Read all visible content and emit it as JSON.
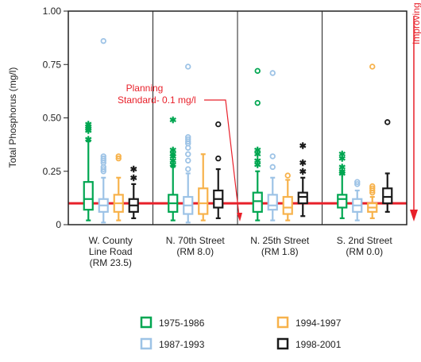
{
  "chart_data": {
    "type": "boxplot",
    "ylabel": "Total Phosphorus (mg/l)",
    "ylim": [
      0,
      1.0
    ],
    "yticks": [
      "0",
      "0.25",
      "0.50",
      "0.75",
      "1.00"
    ],
    "ytick_values": [
      0,
      0.25,
      0.5,
      0.75,
      1.0
    ],
    "grid": false,
    "legend_position": "bottom",
    "planning_standard": {
      "value": 0.1,
      "label_line1": "Planning",
      "label_line2": "Standard- 0.1 mg/l",
      "color": "#e8202a"
    },
    "side_label": "Improving Water Quality",
    "categories": [
      {
        "line1": "W. County",
        "line2": "Line Road",
        "line3": "(RM 23.5)"
      },
      {
        "line1": "N. 70th Street",
        "line2": "(RM 8.0)",
        "line3": ""
      },
      {
        "line1": "N. 25th Street",
        "line2": "(RM 1.8)",
        "line3": ""
      },
      {
        "line1": "S. 2nd Street",
        "line2": "(RM 0.0)",
        "line3": ""
      }
    ],
    "series": [
      {
        "name": "1975-1986",
        "color": "#00a651"
      },
      {
        "name": "1987-1993",
        "color": "#9dc3e6"
      },
      {
        "name": "1994-1997",
        "color": "#f7b24b"
      },
      {
        "name": "1998-2001",
        "color": "#1a1a1a"
      }
    ],
    "boxes": [
      [
        {
          "min": 0.02,
          "q1": 0.07,
          "median": 0.12,
          "q3": 0.2,
          "max": 0.39,
          "outliers": [
            0.4,
            0.44,
            0.45,
            0.46,
            0.47
          ],
          "marker": "star"
        },
        {
          "min": 0.01,
          "q1": 0.06,
          "median": 0.09,
          "q3": 0.12,
          "max": 0.22,
          "outliers": [
            0.25,
            0.26,
            0.27,
            0.29,
            0.3,
            0.31,
            0.32,
            0.86
          ],
          "marker": "circle"
        },
        {
          "min": 0.02,
          "q1": 0.06,
          "median": 0.1,
          "q3": 0.14,
          "max": 0.22,
          "outliers": [
            0.31,
            0.32
          ],
          "marker": "circle"
        },
        {
          "min": 0.03,
          "q1": 0.06,
          "median": 0.09,
          "q3": 0.12,
          "max": 0.19,
          "outliers": [
            0.22,
            0.26
          ],
          "marker": "star"
        }
      ],
      [
        {
          "min": 0.02,
          "q1": 0.06,
          "median": 0.1,
          "q3": 0.14,
          "max": 0.27,
          "outliers": [
            0.28,
            0.3,
            0.32,
            0.33,
            0.35,
            0.49
          ],
          "marker": "star"
        },
        {
          "min": 0.01,
          "q1": 0.05,
          "median": 0.09,
          "q3": 0.13,
          "max": 0.24,
          "outliers": [
            0.26,
            0.3,
            0.33,
            0.36,
            0.38,
            0.39,
            0.4,
            0.41,
            0.74
          ],
          "marker": "circle"
        },
        {
          "min": 0.02,
          "q1": 0.05,
          "median": 0.1,
          "q3": 0.17,
          "max": 0.33,
          "outliers": [],
          "marker": "circle"
        },
        {
          "min": 0.03,
          "q1": 0.08,
          "median": 0.12,
          "q3": 0.16,
          "max": 0.26,
          "outliers": [
            0.31,
            0.47
          ],
          "marker": "circle"
        }
      ],
      [
        {
          "min": 0.02,
          "q1": 0.06,
          "median": 0.11,
          "q3": 0.15,
          "max": 0.25,
          "outliers": [
            0.28,
            0.3,
            0.33,
            0.35,
            0.57,
            0.72
          ],
          "marker": "star"
        },
        {
          "min": 0.02,
          "q1": 0.07,
          "median": 0.09,
          "q3": 0.14,
          "max": 0.22,
          "outliers": [
            0.27,
            0.32,
            0.71
          ],
          "marker": "circle"
        },
        {
          "min": 0.02,
          "q1": 0.05,
          "median": 0.08,
          "q3": 0.13,
          "max": 0.21,
          "outliers": [
            0.23
          ],
          "marker": "circle"
        },
        {
          "min": 0.04,
          "q1": 0.1,
          "median": 0.13,
          "q3": 0.15,
          "max": 0.22,
          "outliers": [
            0.25,
            0.29,
            0.37
          ],
          "marker": "star"
        }
      ],
      [
        {
          "min": 0.03,
          "q1": 0.08,
          "median": 0.12,
          "q3": 0.14,
          "max": 0.24,
          "outliers": [
            0.24,
            0.25,
            0.27,
            0.31,
            0.33
          ],
          "marker": "star"
        },
        {
          "min": 0.02,
          "q1": 0.06,
          "median": 0.09,
          "q3": 0.12,
          "max": 0.16,
          "outliers": [
            0.19,
            0.2
          ],
          "marker": "circle"
        },
        {
          "min": 0.03,
          "q1": 0.06,
          "median": 0.08,
          "q3": 0.1,
          "max": 0.13,
          "outliers": [
            0.15,
            0.16,
            0.17,
            0.18,
            0.74
          ],
          "marker": "circle"
        },
        {
          "min": 0.06,
          "q1": 0.1,
          "median": 0.13,
          "q3": 0.17,
          "max": 0.24,
          "outliers": [
            0.48
          ],
          "marker": "circle"
        }
      ]
    ]
  }
}
